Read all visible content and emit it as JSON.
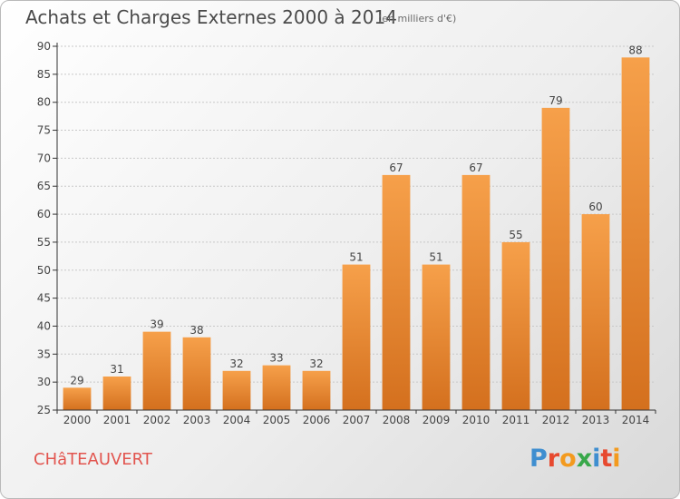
{
  "header": {
    "title": "Achats et Charges Externes 2000 à 2014",
    "subtitle": "(en milliers d'€)"
  },
  "footer": {
    "location": "CHâTEAUVERT",
    "brand": "Proxiti",
    "brand_colors": [
      "#3e8ed0",
      "#e7492f",
      "#f39a1e",
      "#38a84a",
      "#3e8ed0",
      "#e7492f",
      "#f39a1e"
    ]
  },
  "colors": {
    "bar_top": "#f6a04a",
    "bar_bottom": "#d4701e",
    "axis": "#333333",
    "grid": "#c8c8c8",
    "label": "#444444"
  },
  "chart_data": {
    "type": "bar",
    "categories": [
      "2000",
      "2001",
      "2002",
      "2003",
      "2004",
      "2005",
      "2006",
      "2007",
      "2008",
      "2009",
      "2010",
      "2011",
      "2012",
      "2013",
      "2014"
    ],
    "values": [
      29,
      31,
      39,
      38,
      32,
      33,
      32,
      51,
      67,
      51,
      67,
      55,
      79,
      60,
      88
    ],
    "ylim": [
      25,
      90
    ],
    "yticks": [
      25,
      30,
      35,
      40,
      45,
      50,
      55,
      60,
      65,
      70,
      75,
      80,
      85,
      90
    ],
    "grid": true,
    "title": "Achats et Charges Externes 2000 à 2014",
    "subtitle": "(en milliers d'€)",
    "xlabel": "",
    "ylabel": ""
  }
}
